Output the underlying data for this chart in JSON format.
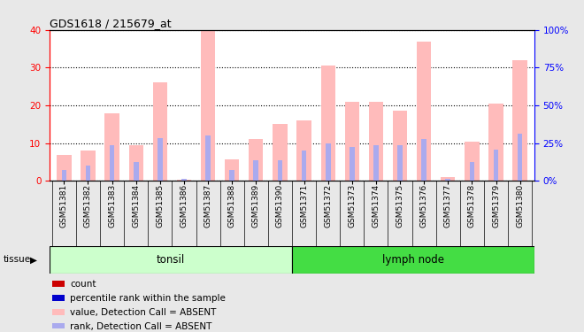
{
  "title": "GDS1618 / 215679_at",
  "samples": [
    "GSM51381",
    "GSM51382",
    "GSM51383",
    "GSM51384",
    "GSM51385",
    "GSM51386",
    "GSM51387",
    "GSM51388",
    "GSM51389",
    "GSM51390",
    "GSM51371",
    "GSM51372",
    "GSM51373",
    "GSM51374",
    "GSM51375",
    "GSM51376",
    "GSM51377",
    "GSM51378",
    "GSM51379",
    "GSM51380"
  ],
  "absent_values": [
    7.0,
    8.0,
    18.0,
    9.5,
    26.0,
    0.3,
    40.0,
    5.8,
    11.0,
    15.0,
    16.0,
    30.5,
    21.0,
    21.0,
    18.5,
    37.0,
    1.0,
    10.5,
    20.5,
    32.0
  ],
  "absent_ranks": [
    7.5,
    10.0,
    23.5,
    12.5,
    28.5,
    1.2,
    30.0,
    7.5,
    13.5,
    13.5,
    20.0,
    25.0,
    22.5,
    23.5,
    23.5,
    27.5,
    1.2,
    12.5,
    21.0,
    31.0
  ],
  "count_values": [
    0,
    0,
    0,
    0,
    0,
    0,
    0,
    0,
    0,
    0,
    0,
    0,
    0,
    0,
    0,
    0,
    0,
    0,
    0,
    0
  ],
  "percentile_ranks": [
    0,
    0,
    0,
    0,
    0,
    0,
    0,
    0,
    0,
    0,
    0,
    0,
    0,
    0,
    0,
    0,
    0,
    0,
    0,
    0
  ],
  "groups": [
    {
      "label": "tonsil",
      "start": 0,
      "end": 10,
      "color": "#ccffcc"
    },
    {
      "label": "lymph node",
      "start": 10,
      "end": 20,
      "color": "#44dd44"
    }
  ],
  "ylim_left": [
    0,
    40
  ],
  "ylim_right": [
    0,
    100
  ],
  "yticks_left": [
    0,
    10,
    20,
    30,
    40
  ],
  "yticks_right": [
    0,
    25,
    50,
    75,
    100
  ],
  "bar_width": 0.6,
  "absent_bar_color": "#ffbbbb",
  "absent_rank_color": "#aaaaee",
  "count_color": "#cc0000",
  "percentile_color": "#0000cc",
  "xtick_bg_color": "#cccccc",
  "fig_bg_color": "#e8e8e8",
  "tissue_label": "tissue"
}
